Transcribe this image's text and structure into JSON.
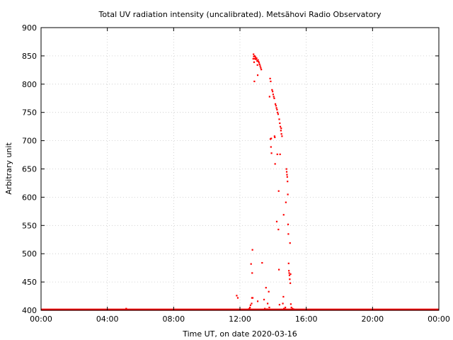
{
  "chart_data": {
    "type": "scatter",
    "title": "Total UV radiation intensity (uncalibrated). Metsähovi Radio Observatory",
    "xlabel": "Time UT, on date 2020-03-16",
    "ylabel": "Arbitrary unit",
    "xlim": [
      "00:00",
      "24:00"
    ],
    "ylim": [
      400,
      900
    ],
    "x_ticks": [
      "00:00",
      "04:00",
      "08:00",
      "12:00",
      "16:00",
      "20:00",
      "00:00"
    ],
    "y_ticks": [
      "400",
      "450",
      "500",
      "550",
      "600",
      "650",
      "700",
      "750",
      "800",
      "850",
      "900"
    ],
    "grid": true,
    "legend": "none",
    "marker_color": "#ff0000",
    "baseline": {
      "value": 401,
      "from": "00:00",
      "to": "24:00"
    },
    "series": [
      {
        "points": [
          [
            "05:08",
            403
          ],
          [
            "11:48",
            426
          ],
          [
            "11:52",
            422
          ],
          [
            "12:32",
            402
          ],
          [
            "12:34",
            403
          ],
          [
            "12:36",
            405
          ],
          [
            "12:38",
            409
          ],
          [
            "12:40",
            482
          ],
          [
            "12:42",
            412
          ],
          [
            "12:43",
            422
          ],
          [
            "12:44",
            466
          ],
          [
            "12:45",
            507
          ],
          [
            "12:46",
            422
          ],
          [
            "12:48",
            845
          ],
          [
            "12:49",
            853
          ],
          [
            "12:50",
            849
          ],
          [
            "12:51",
            839
          ],
          [
            "12:52",
            805
          ],
          [
            "12:53",
            850
          ],
          [
            "12:54",
            845
          ],
          [
            "12:56",
            848
          ],
          [
            "12:58",
            844
          ],
          [
            "13:00",
            846
          ],
          [
            "13:02",
            841
          ],
          [
            "13:03",
            834
          ],
          [
            "13:04",
            816
          ],
          [
            "13:05",
            843
          ],
          [
            "13:07",
            840
          ],
          [
            "13:09",
            838
          ],
          [
            "13:11",
            835
          ],
          [
            "13:13",
            832
          ],
          [
            "13:15",
            829
          ],
          [
            "13:17",
            826
          ],
          [
            "13:04",
            416
          ],
          [
            "13:20",
            484
          ],
          [
            "13:27",
            419
          ],
          [
            "13:30",
            403
          ],
          [
            "13:34",
            440
          ],
          [
            "13:38",
            402
          ],
          [
            "13:40",
            412
          ],
          [
            "13:44",
            433
          ],
          [
            "13:46",
            405
          ],
          [
            "13:47",
            778
          ],
          [
            "13:49",
            810
          ],
          [
            "13:50",
            703
          ],
          [
            "13:51",
            805
          ],
          [
            "13:52",
            689
          ],
          [
            "13:53",
            704
          ],
          [
            "13:54",
            678
          ],
          [
            "13:56",
            790
          ],
          [
            "13:58",
            787
          ],
          [
            "14:00",
            782
          ],
          [
            "14:02",
            778
          ],
          [
            "14:04",
            775
          ],
          [
            "14:05",
            708
          ],
          [
            "14:06",
            706
          ],
          [
            "14:07",
            659
          ],
          [
            "14:08",
            765
          ],
          [
            "14:10",
            762
          ],
          [
            "14:12",
            758
          ],
          [
            "14:13",
            557
          ],
          [
            "14:14",
            755
          ],
          [
            "14:15",
            676
          ],
          [
            "14:16",
            750
          ],
          [
            "14:18",
            747
          ],
          [
            "14:19",
            543
          ],
          [
            "14:20",
            611
          ],
          [
            "14:21",
            472
          ],
          [
            "14:22",
            738
          ],
          [
            "14:23",
            410
          ],
          [
            "14:24",
            731
          ],
          [
            "14:25",
            676
          ],
          [
            "14:26",
            725
          ],
          [
            "14:28",
            718
          ],
          [
            "14:29",
            722
          ],
          [
            "14:30",
            712
          ],
          [
            "14:32",
            708
          ],
          [
            "14:35",
            412
          ],
          [
            "14:37",
            424
          ],
          [
            "14:39",
            403
          ],
          [
            "14:42",
            402
          ],
          [
            "14:44",
            405
          ],
          [
            "14:38",
            569
          ],
          [
            "14:46",
            591
          ],
          [
            "14:48",
            650
          ],
          [
            "14:49",
            645
          ],
          [
            "14:50",
            640
          ],
          [
            "14:51",
            636
          ],
          [
            "14:52",
            628
          ],
          [
            "14:53",
            605
          ],
          [
            "14:54",
            552
          ],
          [
            "14:55",
            535
          ],
          [
            "14:56",
            483
          ],
          [
            "14:57",
            470
          ],
          [
            "14:58",
            466
          ],
          [
            "14:59",
            462
          ],
          [
            "15:00",
            455
          ],
          [
            "15:01",
            519
          ],
          [
            "15:02",
            448
          ],
          [
            "15:03",
            464
          ],
          [
            "15:04",
            411
          ],
          [
            "15:06",
            405
          ],
          [
            "15:10",
            403
          ],
          [
            "15:14",
            402
          ],
          [
            "15:20",
            401
          ]
        ]
      }
    ]
  }
}
